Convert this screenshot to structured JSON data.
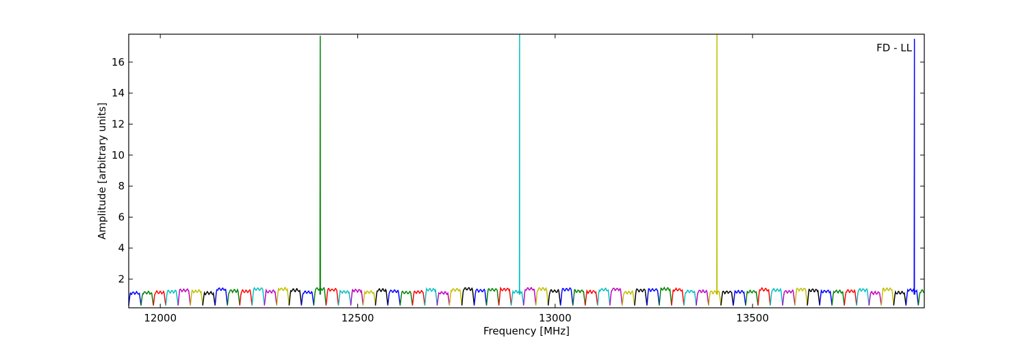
{
  "chart_data": {
    "type": "line",
    "title": "",
    "annotation": "FD - LL",
    "xlabel": "Frequency [MHz]",
    "ylabel": "Amplitude [arbitrary units]",
    "xlim": [
      11920,
      13935
    ],
    "ylim": [
      0.15,
      17.8
    ],
    "x_ticks": [
      12000,
      12500,
      13000,
      13500
    ],
    "x_tick_labels": [
      "12000",
      "12500",
      "13000",
      "13500"
    ],
    "y_ticks": [
      2,
      4,
      6,
      8,
      10,
      12,
      14,
      16
    ],
    "y_tick_labels": [
      "2",
      "4",
      "6",
      "8",
      "10",
      "12",
      "14",
      "16"
    ],
    "grid": false,
    "legend": "none",
    "color_cycle": [
      "#0000ff",
      "#008000",
      "#ff0000",
      "#00bfbf",
      "#bf00bf",
      "#bfbf00",
      "#000000"
    ],
    "channel_width_mhz": 31.25,
    "channels_start_mhz": 11920,
    "baseline": {
      "typical_peak": 1.25,
      "typical_trough": 0.3
    },
    "spikes": [
      {
        "x": 12405,
        "y": 17.7,
        "color": "#008000"
      },
      {
        "x": 12910,
        "y": 17.8,
        "color": "#00bfbf"
      },
      {
        "x": 13410,
        "y": 17.8,
        "color": "#bfbf00"
      },
      {
        "x": 13910,
        "y": 17.5,
        "color": "#0000ff"
      }
    ]
  }
}
